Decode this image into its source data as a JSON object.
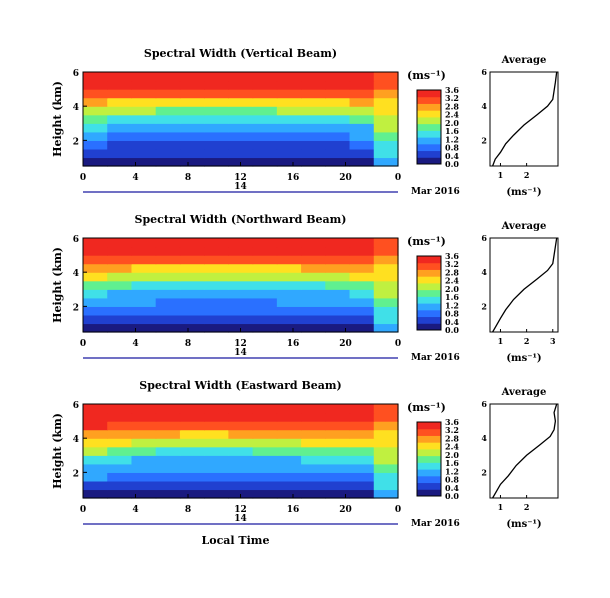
{
  "chart_data": [
    {
      "type": "heatmap",
      "title": "Spectral Width (Vertical Beam)",
      "ylabel": "Height (km)",
      "xlabel": "",
      "x_ticks": [
        "0",
        "4",
        "8",
        "12",
        "16",
        "20",
        "0"
      ],
      "y_ticks": [
        "2",
        "4",
        "6"
      ],
      "date_label": "14",
      "date_suffix": "Mar 2016",
      "xlim": [
        0,
        24
      ],
      "ylim": [
        0.5,
        6
      ],
      "rows": [
        [
          0.2,
          0.2,
          0.3,
          0.3,
          0.2,
          0.2,
          0.3,
          0.3,
          0.2,
          0.2,
          0.2,
          0.2,
          1.2
        ],
        [
          0.5,
          0.4,
          0.4,
          0.4,
          0.4,
          0.4,
          0.4,
          0.4,
          0.4,
          0.4,
          0.4,
          0.5,
          1.4
        ],
        [
          0.8,
          0.6,
          0.6,
          0.6,
          0.6,
          0.6,
          0.6,
          0.6,
          0.6,
          0.6,
          0.6,
          0.7,
          1.6
        ],
        [
          1.1,
          0.9,
          0.8,
          0.8,
          0.8,
          0.8,
          0.8,
          0.8,
          0.8,
          0.9,
          0.9,
          1.0,
          1.8
        ],
        [
          1.4,
          1.2,
          1.1,
          1.1,
          1.0,
          1.0,
          1.0,
          1.0,
          1.1,
          1.1,
          1.2,
          1.3,
          2.0
        ],
        [
          1.8,
          1.6,
          1.5,
          1.4,
          1.4,
          1.4,
          1.4,
          1.4,
          1.5,
          1.5,
          1.6,
          1.7,
          2.2
        ],
        [
          2.2,
          2.1,
          2.0,
          1.9,
          1.9,
          1.9,
          1.9,
          1.9,
          2.0,
          2.0,
          2.1,
          2.2,
          2.4
        ],
        [
          2.7,
          2.6,
          2.5,
          2.5,
          2.5,
          2.5,
          2.5,
          2.5,
          2.5,
          2.6,
          2.6,
          2.7,
          2.6
        ],
        [
          3.2,
          3.1,
          3.1,
          3.0,
          3.0,
          3.0,
          3.0,
          3.0,
          3.0,
          3.1,
          3.1,
          3.1,
          2.8
        ],
        [
          3.5,
          3.5,
          3.4,
          3.4,
          3.4,
          3.4,
          3.4,
          3.4,
          3.4,
          3.4,
          3.5,
          3.4,
          3.0
        ],
        [
          3.6,
          3.6,
          3.6,
          3.6,
          3.6,
          3.6,
          3.6,
          3.6,
          3.6,
          3.6,
          3.6,
          3.5,
          3.2
        ]
      ],
      "colorbar_unit": "(ms⁻¹)",
      "colorbar_ticks": [
        "0.0",
        "0.4",
        "0.8",
        "1.2",
        "1.6",
        "2.0",
        "2.4",
        "2.8",
        "3.2",
        "3.6"
      ],
      "average": {
        "title": "Average",
        "xlabel": "(ms⁻¹)",
        "x_ticks": [
          "1",
          "2"
        ],
        "xlim": [
          0.6,
          3.2
        ],
        "ylim": [
          0.5,
          6
        ],
        "y_ticks": [
          "2",
          "4",
          "6"
        ],
        "points": [
          [
            0.7,
            0.5
          ],
          [
            0.8,
            0.9
          ],
          [
            1.0,
            1.3
          ],
          [
            1.2,
            1.8
          ],
          [
            1.5,
            2.3
          ],
          [
            1.9,
            2.9
          ],
          [
            2.4,
            3.5
          ],
          [
            2.8,
            4.0
          ],
          [
            3.0,
            4.4
          ],
          [
            3.05,
            4.9
          ],
          [
            3.1,
            5.4
          ],
          [
            3.15,
            6.0
          ]
        ]
      }
    },
    {
      "type": "heatmap",
      "title": "Spectral Width (Northward Beam)",
      "ylabel": "Height (km)",
      "xlabel": "",
      "x_ticks": [
        "0",
        "4",
        "8",
        "12",
        "16",
        "20",
        "0"
      ],
      "y_ticks": [
        "2",
        "4",
        "6"
      ],
      "date_label": "14",
      "date_suffix": "Mar 2016",
      "xlim": [
        0,
        24
      ],
      "ylim": [
        0.5,
        6
      ],
      "rows": [
        [
          0.2,
          0.3,
          0.3,
          0.3,
          0.2,
          0.2,
          0.3,
          0.3,
          0.2,
          0.2,
          0.2,
          0.3,
          1.2
        ],
        [
          0.6,
          0.5,
          0.5,
          0.5,
          0.5,
          0.5,
          0.5,
          0.5,
          0.5,
          0.5,
          0.5,
          0.6,
          1.4
        ],
        [
          0.9,
          0.8,
          0.7,
          0.7,
          0.7,
          0.7,
          0.7,
          0.7,
          0.7,
          0.7,
          0.8,
          0.8,
          1.6
        ],
        [
          1.2,
          1.0,
          1.0,
          0.9,
          0.9,
          0.9,
          0.9,
          0.9,
          1.0,
          1.0,
          1.0,
          1.1,
          1.8
        ],
        [
          1.5,
          1.3,
          1.2,
          1.2,
          1.2,
          1.2,
          1.2,
          1.2,
          1.2,
          1.3,
          1.3,
          1.4,
          2.0
        ],
        [
          1.9,
          1.7,
          1.6,
          1.6,
          1.5,
          1.5,
          1.5,
          1.6,
          1.6,
          1.6,
          1.7,
          1.8,
          2.2
        ],
        [
          2.3,
          2.2,
          2.1,
          2.1,
          2.0,
          2.0,
          2.0,
          2.1,
          2.1,
          2.2,
          2.2,
          2.3,
          2.4
        ],
        [
          2.8,
          2.7,
          2.6,
          2.6,
          2.6,
          2.6,
          2.6,
          2.6,
          2.6,
          2.7,
          2.7,
          2.7,
          2.6
        ],
        [
          3.2,
          3.1,
          3.1,
          3.1,
          3.0,
          3.0,
          3.0,
          3.1,
          3.1,
          3.1,
          3.1,
          3.1,
          2.8
        ],
        [
          3.5,
          3.5,
          3.5,
          3.4,
          3.4,
          3.4,
          3.4,
          3.4,
          3.5,
          3.5,
          3.5,
          3.4,
          3.0
        ],
        [
          3.6,
          3.6,
          3.6,
          3.6,
          3.6,
          3.6,
          3.6,
          3.6,
          3.6,
          3.6,
          3.6,
          3.5,
          3.2
        ]
      ],
      "colorbar_unit": "(ms⁻¹)",
      "colorbar_ticks": [
        "0.0",
        "0.4",
        "0.8",
        "1.2",
        "1.6",
        "2.0",
        "2.4",
        "2.8",
        "3.2",
        "3.6"
      ],
      "average": {
        "title": "Average",
        "xlabel": "(ms⁻¹)",
        "x_ticks": [
          "1",
          "2",
          "3"
        ],
        "xlim": [
          0.6,
          3.2
        ],
        "ylim": [
          0.5,
          6
        ],
        "y_ticks": [
          "2",
          "4",
          "6"
        ],
        "points": [
          [
            0.7,
            0.5
          ],
          [
            0.85,
            0.9
          ],
          [
            1.0,
            1.3
          ],
          [
            1.2,
            1.8
          ],
          [
            1.5,
            2.4
          ],
          [
            1.9,
            3.0
          ],
          [
            2.4,
            3.6
          ],
          [
            2.8,
            4.1
          ],
          [
            3.0,
            4.5
          ],
          [
            3.05,
            5.0
          ],
          [
            3.1,
            5.5
          ],
          [
            3.15,
            6.0
          ]
        ]
      }
    },
    {
      "type": "heatmap",
      "title": "Spectral Width (Eastward Beam)",
      "ylabel": "Height (km)",
      "xlabel": "Local Time",
      "x_ticks": [
        "0",
        "4",
        "8",
        "12",
        "16",
        "20",
        "0"
      ],
      "y_ticks": [
        "2",
        "4",
        "6"
      ],
      "date_label": "14",
      "date_suffix": "Mar 2016",
      "xlim": [
        0,
        24
      ],
      "ylim": [
        0.5,
        6
      ],
      "rows": [
        [
          0.2,
          0.3,
          0.3,
          0.2,
          0.2,
          0.2,
          0.3,
          0.3,
          0.2,
          0.2,
          0.2,
          0.3,
          1.2
        ],
        [
          0.6,
          0.5,
          0.5,
          0.5,
          0.5,
          0.5,
          0.5,
          0.5,
          0.5,
          0.5,
          0.5,
          0.6,
          1.4
        ],
        [
          1.0,
          0.9,
          0.8,
          0.8,
          0.8,
          0.8,
          0.8,
          0.8,
          0.8,
          0.8,
          0.9,
          0.9,
          1.6
        ],
        [
          1.3,
          1.1,
          1.0,
          1.0,
          1.0,
          1.0,
          1.0,
          1.0,
          1.0,
          1.1,
          1.1,
          1.2,
          1.8
        ],
        [
          1.6,
          1.4,
          1.3,
          1.3,
          1.2,
          1.2,
          1.2,
          1.3,
          1.3,
          1.4,
          1.4,
          1.5,
          2.0
        ],
        [
          2.0,
          1.8,
          1.7,
          1.6,
          1.6,
          1.6,
          1.6,
          1.7,
          1.7,
          1.8,
          1.8,
          1.9,
          2.2
        ],
        [
          2.4,
          2.3,
          2.2,
          2.1,
          2.1,
          2.1,
          2.1,
          2.2,
          2.2,
          2.3,
          2.3,
          2.4,
          2.4
        ],
        [
          2.9,
          2.8,
          2.7,
          2.7,
          2.6,
          2.6,
          2.7,
          2.7,
          2.7,
          2.8,
          2.8,
          2.8,
          2.6
        ],
        [
          3.3,
          3.2,
          3.2,
          3.1,
          3.1,
          3.1,
          3.1,
          3.1,
          3.2,
          3.2,
          3.2,
          3.2,
          2.8
        ],
        [
          3.5,
          3.5,
          3.5,
          3.4,
          3.4,
          3.4,
          3.4,
          3.4,
          3.5,
          3.5,
          3.5,
          3.4,
          3.0
        ],
        [
          3.6,
          3.6,
          3.6,
          3.6,
          3.6,
          3.6,
          3.6,
          3.6,
          3.6,
          3.6,
          3.6,
          3.5,
          3.2
        ]
      ],
      "colorbar_unit": "(ms⁻¹)",
      "colorbar_ticks": [
        "0.0",
        "0.4",
        "0.8",
        "1.2",
        "1.6",
        "2.0",
        "2.4",
        "2.8",
        "3.2",
        "3.6"
      ],
      "average": {
        "title": "Average",
        "xlabel": "(ms⁻¹)",
        "x_ticks": [
          "1",
          "2"
        ],
        "xlim": [
          0.6,
          3.2
        ],
        "ylim": [
          0.5,
          6
        ],
        "y_ticks": [
          "2",
          "4",
          "6"
        ],
        "points": [
          [
            0.7,
            0.5
          ],
          [
            0.85,
            0.9
          ],
          [
            1.0,
            1.3
          ],
          [
            1.3,
            1.8
          ],
          [
            1.6,
            2.4
          ],
          [
            2.0,
            3.0
          ],
          [
            2.5,
            3.6
          ],
          [
            2.9,
            4.1
          ],
          [
            3.05,
            4.5
          ],
          [
            3.1,
            5.0
          ],
          [
            3.05,
            5.5
          ],
          [
            3.15,
            6.0
          ]
        ]
      }
    }
  ],
  "colors": {
    "scale": [
      "#1a1a80",
      "#2040d0",
      "#2a70ff",
      "#30a8ff",
      "#40e0e8",
      "#60f090",
      "#c0f040",
      "#ffe020",
      "#ffa020",
      "#ff5020",
      "#f02820"
    ],
    "axis": "#000000",
    "time_bar": "#1a1aa0"
  }
}
